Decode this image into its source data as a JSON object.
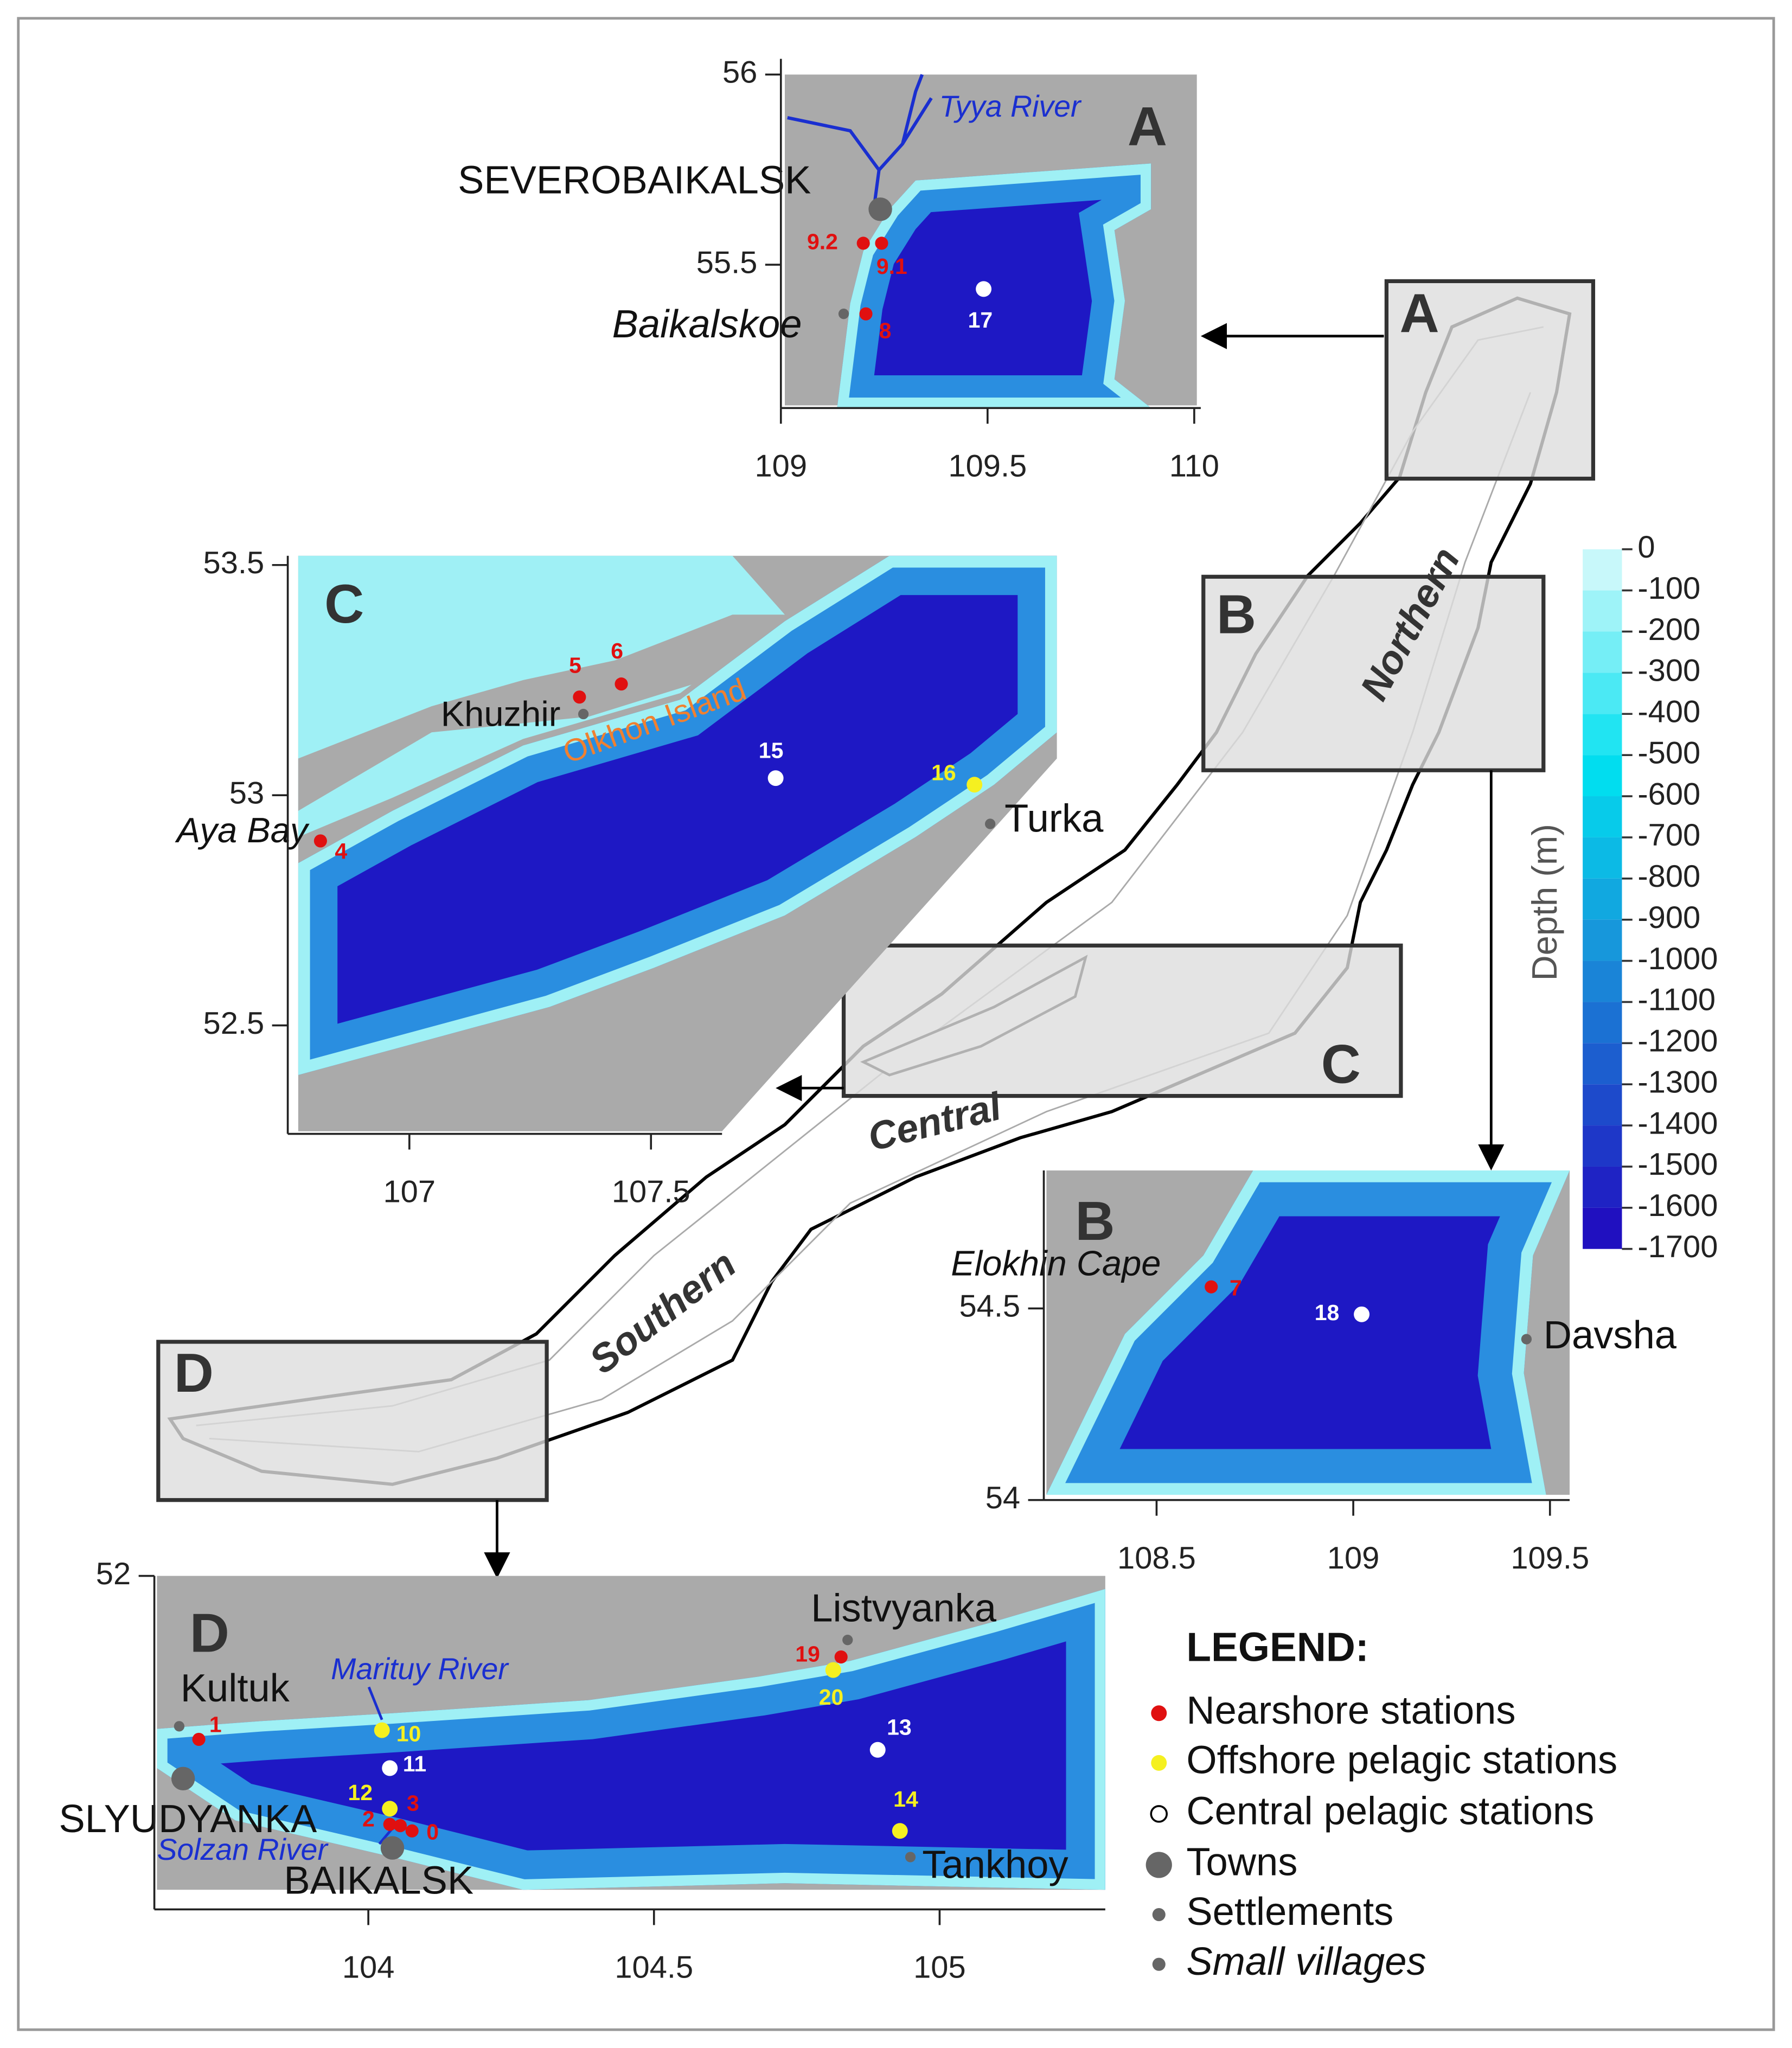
{
  "main_map": {
    "basins": [
      "Northern",
      "Central",
      "Southern"
    ]
  },
  "insets": [
    {
      "label": "A",
      "xlim": [
        109,
        110
      ],
      "ylim": [
        55.13,
        56
      ],
      "xticks": [
        109,
        109.5,
        110
      ],
      "yticks": [
        55.5,
        56
      ],
      "places": [
        "SEVEROBAIKALSK",
        "Tyya River",
        "Baikalskoe"
      ],
      "stations": [
        "9.2",
        "9.1",
        "8",
        "17"
      ]
    },
    {
      "label": "B",
      "xlim": [
        108.22,
        109.55
      ],
      "ylim": [
        54,
        54.86
      ],
      "xticks": [
        108.5,
        109,
        109.5
      ],
      "yticks": [
        54,
        54.5
      ],
      "places": [
        "Elokhin Cape",
        "Davsha"
      ],
      "stations": [
        "7",
        "18"
      ]
    },
    {
      "label": "C",
      "xlim": [
        106.77,
        108.34
      ],
      "ylim": [
        52.27,
        53.52
      ],
      "xticks": [
        107,
        107.5
      ],
      "yticks": [
        52.5,
        53,
        53.5
      ],
      "places": [
        "Khuzhir",
        "Olkhon Island",
        "Aya Bay",
        "Turka"
      ],
      "stations": [
        "5",
        "6",
        "15",
        "16",
        "4"
      ]
    },
    {
      "label": "D",
      "xlim": [
        103.63,
        105.29
      ],
      "ylim": [
        51.45,
        52
      ],
      "xticks": [
        104,
        104.5,
        105
      ],
      "yticks": [
        52
      ],
      "places": [
        "Kultuk",
        "SLYUDYANKA",
        "BAIKALSK",
        "Listvyanka",
        "Tankhoy",
        "Marituy River",
        "Solzan River"
      ],
      "stations": [
        "1",
        "10",
        "11",
        "12",
        "2",
        "3",
        "0",
        "19",
        "20",
        "13",
        "14"
      ]
    }
  ],
  "colorbar": {
    "title": "Depth (m)",
    "lim": [
      -1700,
      0
    ],
    "ticks": [
      0,
      -100,
      -200,
      -300,
      -400,
      -500,
      -600,
      -700,
      -800,
      -900,
      -1000,
      -1100,
      -1200,
      -1300,
      -1400,
      -1500,
      -1600,
      -1700
    ]
  },
  "legend": {
    "title": "LEGEND:",
    "items": [
      "Nearshore stations",
      "Offshore pelagic stations",
      "Central pelagic stations",
      "Towns",
      "Settlements",
      "Small villages"
    ]
  }
}
